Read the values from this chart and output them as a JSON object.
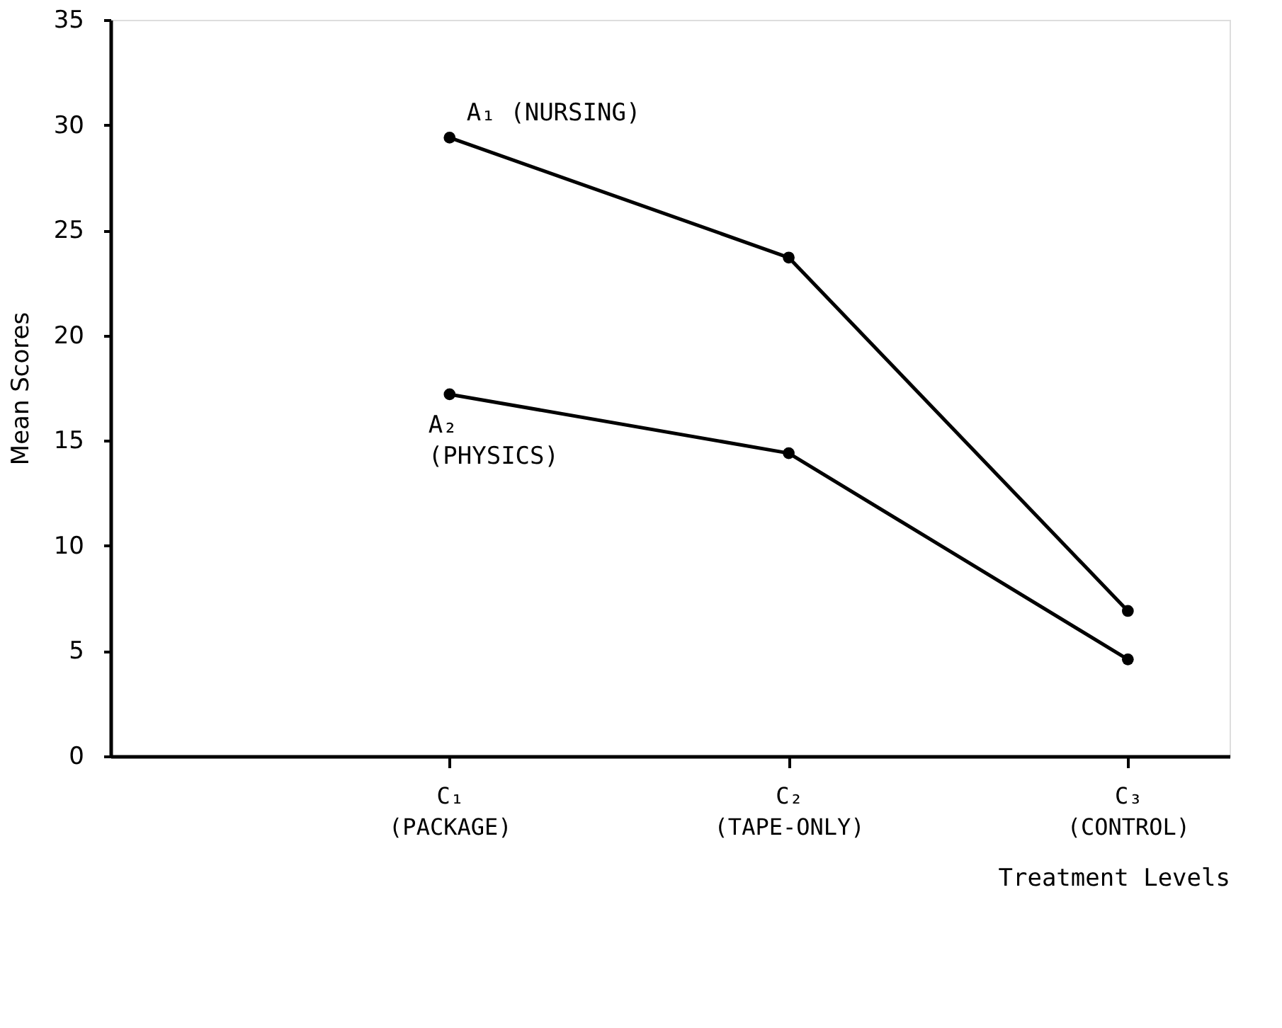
{
  "chart_data": {
    "type": "line",
    "xlabel": "Treatment Levels",
    "ylabel": "Mean Scores",
    "categories": [
      "C₁\n(PACKAGE)",
      "C₂\n(TAPE-ONLY)",
      "C₃\n(CONTROL)"
    ],
    "series": [
      {
        "name": "A₁ (NURSING)",
        "color": "#000000",
        "values": [
          29.4,
          23.7,
          6.9
        ]
      },
      {
        "name": "A₂\n(PHYSICS)",
        "color": "#000000",
        "values": [
          17.2,
          14.4,
          4.6
        ]
      }
    ],
    "ylim": [
      0,
      35
    ],
    "yticks": [
      0,
      5,
      10,
      15,
      20,
      25,
      30,
      35
    ],
    "grid": false,
    "legend": false,
    "marker": "circle",
    "line_style": "solid"
  }
}
